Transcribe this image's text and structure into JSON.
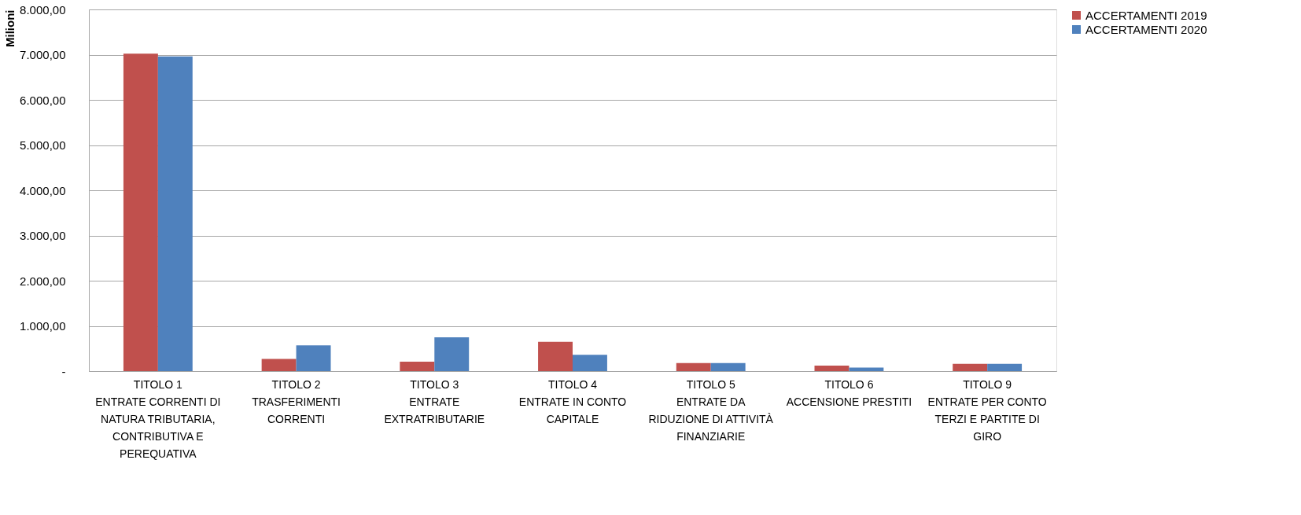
{
  "chart_data": {
    "type": "bar",
    "ylabel": "Milioni",
    "categories": [
      "TITOLO 1\nENTRATE CORRENTI DI\nNATURA TRIBUTARIA,\nCONTRIBUTIVA E\nPEREQUATIVA",
      "TITOLO 2\nTRASFERIMENTI\nCORRENTI",
      "TITOLO 3\nENTRATE\nEXTRATRIBUTARIE",
      "TITOLO 4\nENTRATE IN CONTO\nCAPITALE",
      "TITOLO 5\nENTRATE DA\nRIDUZIONE DI ATTIVITÀ\nFINANZIARIE",
      "TITOLO 6\nACCENSIONE PRESTITI",
      "TITOLO 9\nENTRATE PER CONTO\nTERZI E PARTITE DI\nGIRO"
    ],
    "series": [
      {
        "name": "ACCERTAMENTI 2019",
        "color": "#c0504d",
        "values": [
          7020,
          270,
          210,
          650,
          180,
          120,
          160
        ]
      },
      {
        "name": "ACCERTAMENTI 2020",
        "color": "#4f81bd",
        "values": [
          6960,
          570,
          750,
          360,
          180,
          80,
          160
        ]
      }
    ],
    "ylim": [
      0,
      8000
    ],
    "yticks": [
      {
        "value": 0,
        "label": "-"
      },
      {
        "value": 1000,
        "label": "1.000,00"
      },
      {
        "value": 2000,
        "label": "2.000,00"
      },
      {
        "value": 3000,
        "label": "3.000,00"
      },
      {
        "value": 4000,
        "label": "4.000,00"
      },
      {
        "value": 5000,
        "label": "5.000,00"
      },
      {
        "value": 6000,
        "label": "6.000,00"
      },
      {
        "value": 7000,
        "label": "7.000,00"
      },
      {
        "value": 8000,
        "label": "8.000,00"
      }
    ],
    "grid": "y",
    "legend": "right"
  }
}
